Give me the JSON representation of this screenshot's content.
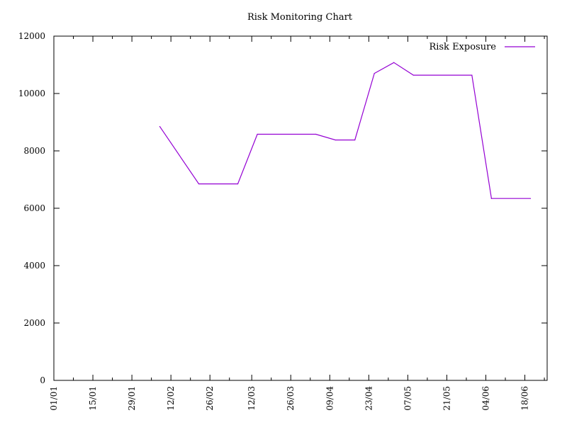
{
  "chart_data": {
    "type": "line",
    "title": "Risk Monitoring Chart",
    "xlabel": "",
    "ylabel": "",
    "x_tick_labels": [
      "01/01",
      "15/01",
      "29/01",
      "12/02",
      "26/02",
      "12/03",
      "26/03",
      "09/04",
      "23/04",
      "07/05",
      "21/05",
      "04/06",
      "18/06"
    ],
    "y_tick_labels": [
      "0",
      "2000",
      "4000",
      "6000",
      "8000",
      "10000",
      "12000"
    ],
    "ylim": [
      0,
      12000
    ],
    "xlim": [
      "01/01",
      "26/06"
    ],
    "grid": false,
    "legend_position": "top-right",
    "series": [
      {
        "name": "Risk Exposure",
        "color": "#9400d3",
        "points": [
          {
            "x": "08/02",
            "y": 8850
          },
          {
            "x": "22/02",
            "y": 6850
          },
          {
            "x": "07/03",
            "y": 6850
          },
          {
            "x": "14/03",
            "y": 8580
          },
          {
            "x": "04/04",
            "y": 8580
          },
          {
            "x": "11/04",
            "y": 8380
          },
          {
            "x": "18/04",
            "y": 8380
          },
          {
            "x": "25/04",
            "y": 10700
          },
          {
            "x": "02/05",
            "y": 11080
          },
          {
            "x": "09/05",
            "y": 10640
          },
          {
            "x": "30/05",
            "y": 10640
          },
          {
            "x": "06/06",
            "y": 6340
          },
          {
            "x": "20/06",
            "y": 6340
          }
        ]
      }
    ]
  }
}
